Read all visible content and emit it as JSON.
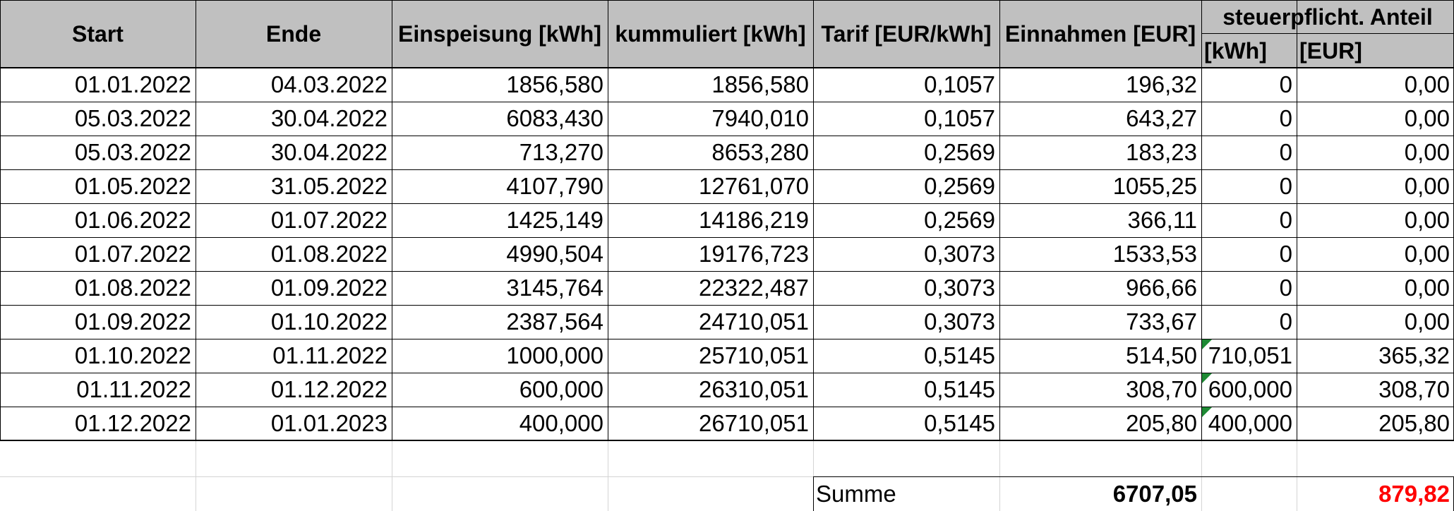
{
  "table": {
    "headers": {
      "start": "Start",
      "ende": "Ende",
      "einspeisung": "Einspeisung [kWh]",
      "kummuliert": "kummuliert [kWh]",
      "tarif": "Tarif [EUR/kWh]",
      "einnahmen": "Einnahmen [EUR]",
      "steuer_group": "steuerpflicht. Anteil",
      "steuer_kwh": "[kWh]",
      "steuer_eur": "[EUR]"
    },
    "rows": [
      [
        "01.01.2022",
        "04.03.2022",
        "1856,580",
        "1856,580",
        "0,1057",
        "196,32",
        "0",
        "0,00"
      ],
      [
        "05.03.2022",
        "30.04.2022",
        "6083,430",
        "7940,010",
        "0,1057",
        "643,27",
        "0",
        "0,00"
      ],
      [
        "05.03.2022",
        "30.04.2022",
        "713,270",
        "8653,280",
        "0,2569",
        "183,23",
        "0",
        "0,00"
      ],
      [
        "01.05.2022",
        "31.05.2022",
        "4107,790",
        "12761,070",
        "0,2569",
        "1055,25",
        "0",
        "0,00"
      ],
      [
        "01.06.2022",
        "01.07.2022",
        "1425,149",
        "14186,219",
        "0,2569",
        "366,11",
        "0",
        "0,00"
      ],
      [
        "01.07.2022",
        "01.08.2022",
        "4990,504",
        "19176,723",
        "0,3073",
        "1533,53",
        "0",
        "0,00"
      ],
      [
        "01.08.2022",
        "01.09.2022",
        "3145,764",
        "22322,487",
        "0,3073",
        "966,66",
        "0",
        "0,00"
      ],
      [
        "01.09.2022",
        "01.10.2022",
        "2387,564",
        "24710,051",
        "0,3073",
        "733,67",
        "0",
        "0,00"
      ],
      [
        "01.10.2022",
        "01.11.2022",
        "1000,000",
        "25710,051",
        "0,5145",
        "514,50",
        "710,051",
        "365,32"
      ],
      [
        "01.11.2022",
        "01.12.2022",
        "600,000",
        "26310,051",
        "0,5145",
        "308,70",
        "600,000",
        "308,70"
      ],
      [
        "01.12.2022",
        "01.01.2023",
        "400,000",
        "26710,051",
        "0,5145",
        "205,80",
        "400,000",
        "205,80"
      ]
    ],
    "comment_rows": [
      8,
      9,
      10
    ]
  },
  "summary": {
    "label": "Summe",
    "einnahmen_total": "6707,05",
    "steuer_total": "879,82"
  },
  "colors": {
    "header_bg": "#c0c0c0",
    "grid_line": "#d4d4d4",
    "border": "#000000",
    "highlight_total": "#ff0000",
    "comment_indicator": "#1e8a34"
  }
}
